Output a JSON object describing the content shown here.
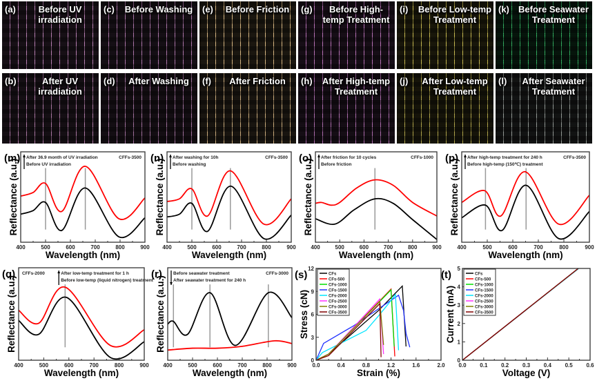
{
  "photos": [
    {
      "letter": "(a)",
      "caption": "Before UV irradiation",
      "color": "#b47aae"
    },
    {
      "letter": "(c)",
      "caption": "Before Washing",
      "color": "#a870a4"
    },
    {
      "letter": "(e)",
      "caption": "Before Friction",
      "color": "#d6b47e"
    },
    {
      "letter": "(g)",
      "caption": "Before High-temp Treatment",
      "color": "#b46cb2"
    },
    {
      "letter": "(i)",
      "caption": "Before Low-temp Treatment",
      "color": "#c4b64a"
    },
    {
      "letter": "(k)",
      "caption": "Before Seawater Treatment",
      "color": "#2aa658"
    },
    {
      "letter": "(b)",
      "caption": "After UV irradiation",
      "color": "#a6729e"
    },
    {
      "letter": "(d)",
      "caption": "After Washing",
      "color": "#9a6a96"
    },
    {
      "letter": "(f)",
      "caption": "After Friction",
      "color": "#c8a878"
    },
    {
      "letter": "(h)",
      "caption": "After High-temp Treatment",
      "color": "#a866a8"
    },
    {
      "letter": "(j)",
      "caption": "After Low-temp Treatment",
      "color": "#aca044"
    },
    {
      "letter": "(l)",
      "caption": "After Seawater Treatment",
      "color": "#8e9490"
    }
  ],
  "chart_data": [
    {
      "id": "m",
      "letter": "(m)",
      "type": "line",
      "xlabel": "Wavelength (nm)",
      "ylabel": "Reflectance (a.u.)",
      "xlim": [
        400,
        900
      ],
      "ylim": [
        0,
        10
      ],
      "xticks": [
        400,
        500,
        600,
        700,
        800,
        900
      ],
      "annotations": [
        "After 36.9 month of UV irradiation",
        "Before UV irradiation"
      ],
      "arrow": "up",
      "sample": "CFFs-3500",
      "peaks": [
        500,
        660
      ],
      "series": [
        {
          "color": "#000000",
          "points": [
            [
              400,
              3.1
            ],
            [
              450,
              3.5
            ],
            [
              500,
              4.4
            ],
            [
              565,
              1.3
            ],
            [
              660,
              6.0
            ],
            [
              795,
              0.6
            ],
            [
              900,
              2.7
            ]
          ]
        },
        {
          "color": "#ff0000",
          "points": [
            [
              400,
              5.1
            ],
            [
              450,
              5.5
            ],
            [
              500,
              6.5
            ],
            [
              565,
              3.4
            ],
            [
              660,
              8.4
            ],
            [
              795,
              2.6
            ],
            [
              900,
              4.9
            ]
          ]
        }
      ]
    },
    {
      "id": "n",
      "letter": "(n)",
      "type": "line",
      "xlabel": "Wavelength (nm)",
      "ylabel": "Reflectance (a.u.)",
      "xlim": [
        400,
        900
      ],
      "ylim": [
        0,
        10
      ],
      "xticks": [
        400,
        500,
        600,
        700,
        800,
        900
      ],
      "annotations": [
        "After washing for 10h",
        "Before washing"
      ],
      "arrow": "up",
      "sample": "CFFs-3500",
      "peaks": [
        500,
        655
      ],
      "series": [
        {
          "color": "#000000",
          "points": [
            [
              400,
              2.8
            ],
            [
              450,
              3.1
            ],
            [
              500,
              4.3
            ],
            [
              563,
              1.2
            ],
            [
              657,
              6.2
            ],
            [
              790,
              0.4
            ],
            [
              900,
              3.0
            ]
          ]
        },
        {
          "color": "#ff0000",
          "points": [
            [
              400,
              4.5
            ],
            [
              450,
              4.8
            ],
            [
              500,
              5.9
            ],
            [
              563,
              2.9
            ],
            [
              655,
              7.9
            ],
            [
              790,
              2.0
            ],
            [
              900,
              4.8
            ]
          ]
        }
      ]
    },
    {
      "id": "o",
      "letter": "(o)",
      "type": "line",
      "xlabel": "Wavelength (nm)",
      "ylabel": "Reflectance (a.u.)",
      "xlim": [
        400,
        900
      ],
      "ylim": [
        0,
        10
      ],
      "xticks": [
        400,
        500,
        600,
        700,
        800,
        900
      ],
      "annotations": [
        "After friction for 10 cycles",
        "Before friction"
      ],
      "arrow": "up",
      "sample": "CFFs-1000",
      "peaks": [
        645
      ],
      "series": [
        {
          "color": "#000000",
          "points": [
            [
              400,
              2.6
            ],
            [
              480,
              2.0
            ],
            [
              560,
              3.6
            ],
            [
              645,
              4.8
            ],
            [
              720,
              4.3
            ],
            [
              800,
              2.5
            ],
            [
              900,
              0.3
            ]
          ]
        },
        {
          "color": "#ff0000",
          "points": [
            [
              400,
              4.3
            ],
            [
              425,
              4.4
            ],
            [
              465,
              4.1
            ],
            [
              500,
              4.4
            ],
            [
              570,
              6.0
            ],
            [
              645,
              6.9
            ],
            [
              720,
              6.3
            ],
            [
              800,
              4.4
            ],
            [
              900,
              2.9
            ]
          ]
        }
      ]
    },
    {
      "id": "p",
      "letter": "(p)",
      "type": "line",
      "xlabel": "Wavelength (nm)",
      "ylabel": "Reflectance (a.u.)",
      "xlim": [
        400,
        900
      ],
      "ylim": [
        0,
        10
      ],
      "xticks": [
        400,
        500,
        600,
        700,
        800,
        900
      ],
      "annotations": [
        "After high-temp treatment for 240 h",
        "Before high-temp (150℃) treatment"
      ],
      "arrow": "up",
      "sample": "CFFs-3500",
      "peaks": [
        493,
        652
      ],
      "series": [
        {
          "color": "#000000",
          "points": [
            [
              400,
              2.7
            ],
            [
              493,
              4.1
            ],
            [
              558,
              1.3
            ],
            [
              652,
              6.3
            ],
            [
              780,
              0.4
            ],
            [
              900,
              3.4
            ]
          ]
        },
        {
          "color": "#ff0000",
          "points": [
            [
              400,
              4.4
            ],
            [
              490,
              5.7
            ],
            [
              553,
              2.9
            ],
            [
              648,
              7.8
            ],
            [
              780,
              2.0
            ],
            [
              900,
              5.2
            ]
          ]
        }
      ]
    },
    {
      "id": "q",
      "letter": "(q)",
      "type": "line",
      "xlabel": "Wavelength (nm)",
      "ylabel": "Reflectance (a.u.)",
      "xlim": [
        400,
        900
      ],
      "ylim": [
        0,
        10
      ],
      "xticks": [
        400,
        500,
        600,
        700,
        800,
        900
      ],
      "annotations": [
        "After low-temp treatment for 1 h",
        "Before low-temp (liquid nitrogen) treatment"
      ],
      "arrow": "up",
      "sample": "CFFs-2000",
      "sample_left": true,
      "peaks": [
        585
      ],
      "series": [
        {
          "color": "#000000",
          "points": [
            [
              400,
              4.3
            ],
            [
              480,
              2.8
            ],
            [
              590,
              6.8
            ],
            [
              765,
              0.3
            ],
            [
              900,
              2.0
            ]
          ]
        },
        {
          "color": "#ff0000",
          "points": [
            [
              400,
              5.4
            ],
            [
              480,
              4.0
            ],
            [
              585,
              7.9
            ],
            [
              765,
              1.6
            ],
            [
              900,
              3.3
            ]
          ]
        }
      ]
    },
    {
      "id": "r",
      "letter": "(r)",
      "type": "line",
      "xlabel": "Wavelength (nm)",
      "ylabel": "Reflectance (a.u.)",
      "xlim": [
        400,
        900
      ],
      "ylim": [
        0,
        10
      ],
      "xticks": [
        400,
        500,
        600,
        700,
        800,
        900
      ],
      "annotations": [
        "Before seawater treatment",
        "After seawater treatment for 240 h"
      ],
      "arrow": "down",
      "sample": "CFFs-3000",
      "peaks": [
        423,
        570,
        805
      ],
      "series": [
        {
          "color": "#000000",
          "points": [
            [
              400,
              3.9
            ],
            [
              423,
              4.2
            ],
            [
              480,
              2.8
            ],
            [
              570,
              7.3
            ],
            [
              672,
              1.6
            ],
            [
              805,
              7.3
            ],
            [
              900,
              4.6
            ]
          ]
        },
        {
          "color": "#ff0000",
          "points": [
            [
              400,
              1.1
            ],
            [
              500,
              1.3
            ],
            [
              600,
              1.3
            ],
            [
              700,
              1.5
            ],
            [
              830,
              2.1
            ],
            [
              900,
              1.8
            ]
          ]
        }
      ]
    },
    {
      "id": "s",
      "letter": "(s)",
      "type": "line",
      "xlabel": "Strain (%)",
      "ylabel": "Stress (cN)",
      "xlim": [
        0,
        2.0
      ],
      "ylim": [
        0,
        12
      ],
      "xticks": [
        0.0,
        0.4,
        0.8,
        1.2,
        1.6,
        2.0
      ],
      "yticks": [
        0,
        3,
        6,
        9,
        12
      ],
      "legend": "top-left",
      "series": [
        {
          "name": "CFs",
          "color": "#000000",
          "points": [
            [
              0,
              0
            ],
            [
              0.2,
              0.8
            ],
            [
              1.0,
              6.5
            ],
            [
              1.38,
              9.7
            ],
            [
              1.44,
              1.8
            ]
          ]
        },
        {
          "name": "CFs-500",
          "color": "#ff0000",
          "points": [
            [
              0,
              0
            ],
            [
              0.2,
              0.8
            ],
            [
              1.2,
              9.3
            ],
            [
              1.26,
              0.5
            ]
          ]
        },
        {
          "name": "CFs-1000",
          "color": "#00dd00",
          "points": [
            [
              0,
              0
            ],
            [
              0.2,
              0.8
            ],
            [
              1.2,
              9.2
            ],
            [
              1.25,
              1.8
            ]
          ]
        },
        {
          "name": "CFs-1500",
          "color": "#2233ff",
          "points": [
            [
              0,
              0
            ],
            [
              0.12,
              2.2
            ],
            [
              0.6,
              4.5
            ],
            [
              1.32,
              8.5
            ],
            [
              1.4,
              6.5
            ],
            [
              1.44,
              3.5
            ],
            [
              1.5,
              1.7
            ]
          ]
        },
        {
          "name": "CFs-2000",
          "color": "#00e5ff",
          "points": [
            [
              0,
              0
            ],
            [
              0.1,
              1.0
            ],
            [
              0.8,
              3.9
            ],
            [
              1.0,
              5.8
            ],
            [
              1.15,
              7.3
            ],
            [
              1.27,
              8.6
            ],
            [
              1.32,
              1.3
            ]
          ]
        },
        {
          "name": "CFs-2500",
          "color": "#ff33ff",
          "points": [
            [
              0,
              0
            ],
            [
              0.2,
              0.8
            ],
            [
              1.02,
              8.0
            ],
            [
              1.08,
              0.8
            ]
          ]
        },
        {
          "name": "CFs-3000",
          "color": "#808000",
          "points": [
            [
              0,
              0
            ],
            [
              0.2,
              0.8
            ],
            [
              1.02,
              7.7
            ],
            [
              1.08,
              2.0
            ]
          ]
        },
        {
          "name": "CFs-3500",
          "color": "#800000",
          "points": [
            [
              0,
              0
            ],
            [
              0.2,
              0.6
            ],
            [
              1.02,
              7.4
            ],
            [
              1.04,
              0.4
            ]
          ]
        }
      ]
    },
    {
      "id": "t",
      "letter": "(t)",
      "type": "line",
      "xlabel": "Voltage (V)",
      "ylabel": "Current (mA)",
      "xlim": [
        0,
        0.6
      ],
      "ylim": [
        0,
        5
      ],
      "xticks": [
        0.0,
        0.1,
        0.2,
        0.3,
        0.4,
        0.5,
        0.6
      ],
      "yticks": [
        0,
        1,
        2,
        3,
        4,
        5
      ],
      "legend": "top-left",
      "series": [
        {
          "name": "CFs",
          "color": "#000000",
          "points": [
            [
              0,
              0
            ],
            [
              0.545,
              5
            ]
          ]
        },
        {
          "name": "CFs-500",
          "color": "#ff0000",
          "points": [
            [
              0,
              0
            ],
            [
              0.545,
              5
            ]
          ]
        },
        {
          "name": "CFs-1000",
          "color": "#00dd00",
          "points": [
            [
              0,
              0
            ],
            [
              0.545,
              5
            ]
          ]
        },
        {
          "name": "CFs-1500",
          "color": "#2233ff",
          "points": [
            [
              0,
              0
            ],
            [
              0.546,
              5
            ]
          ]
        },
        {
          "name": "CFs-2000",
          "color": "#00e5ff",
          "points": [
            [
              0,
              0
            ],
            [
              0.547,
              5
            ]
          ]
        },
        {
          "name": "CFs-2500",
          "color": "#ff33ff",
          "points": [
            [
              0,
              0
            ],
            [
              0.545,
              5
            ]
          ]
        },
        {
          "name": "CFs-3000",
          "color": "#808000",
          "points": [
            [
              0,
              0
            ],
            [
              0.545,
              5
            ]
          ]
        },
        {
          "name": "CFs-3500",
          "color": "#800000",
          "points": [
            [
              0,
              0
            ],
            [
              0.544,
              5
            ]
          ]
        }
      ]
    }
  ]
}
